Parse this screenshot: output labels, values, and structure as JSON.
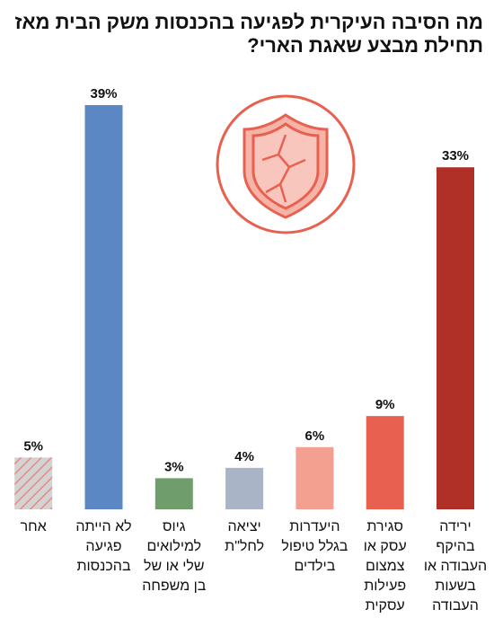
{
  "chart_data": {
    "type": "bar",
    "title": "מה הסיבה העיקרית לפגיעה בהכנסות משק הבית מאז תחילת מבצע שאגת הארי?",
    "categories": [
      "ירידה בהיקף העבודה או בשעות העבודה",
      "סגירת עסק או צמצום פעילות עסקית",
      "היעדרות בגלל טיפול בילדים",
      "יציאה לחל\"ת",
      "גיוס למילואים שלי או של בן משפחה",
      "לא הייתה פגיעה בהכנסות",
      "אחר"
    ],
    "values": [
      33,
      9,
      6,
      4,
      3,
      39,
      5
    ],
    "value_labels": [
      "33%",
      "9%",
      "6%",
      "4%",
      "3%",
      "39%",
      "5%"
    ],
    "colors": [
      "#b03027",
      "#e8604f",
      "#f4a090",
      "#a9b5c6",
      "#6f9e6c",
      "#5b87c5",
      "#d3d3d3"
    ],
    "hatch": [
      false,
      false,
      false,
      false,
      false,
      false,
      true
    ]
  }
}
